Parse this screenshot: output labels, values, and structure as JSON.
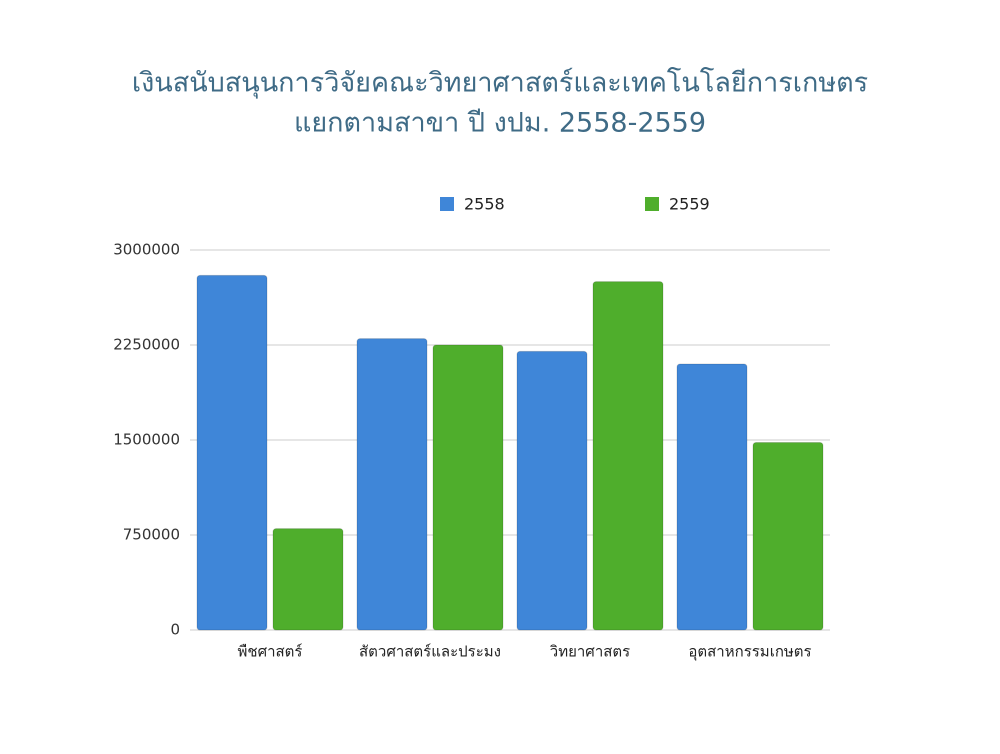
{
  "chart_data": {
    "type": "bar",
    "title": "เงินสนับสนุนการวิจัยคณะวิทยาศาสตร์และเทคโนโลยีการเกษตร",
    "subtitle": "แยกตามสาขา ปี งปม. 2558-2559",
    "categories": [
      "พืชศาสตร์",
      "สัตวศาสตร์และประมง",
      "วิทยาศาสตร",
      "อุตสาหกรรมเกษตร"
    ],
    "series": [
      {
        "name": "2558",
        "color": "#3f86d8",
        "values": [
          2800000,
          2300000,
          2200000,
          2100000
        ]
      },
      {
        "name": "2559",
        "color": "#4fae2c",
        "values": [
          800000,
          2250000,
          2750000,
          1480000
        ]
      }
    ],
    "ylim": [
      0,
      3000000
    ],
    "yticks": [
      0,
      750000,
      1500000,
      2250000,
      3000000
    ],
    "grid": true,
    "legend": "top"
  }
}
